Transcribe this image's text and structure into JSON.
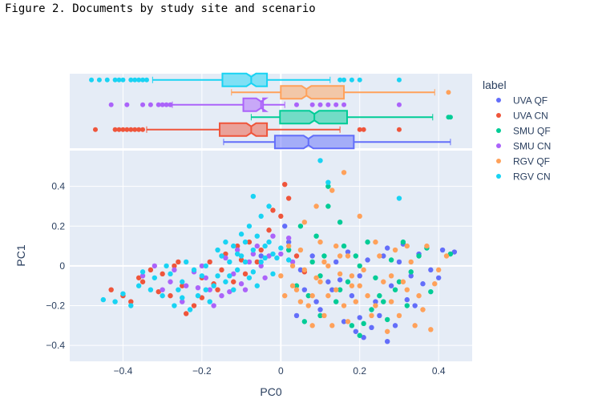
{
  "figure_title": "Figure 2. Documents by study site and scenario",
  "chart_data": {
    "type": "scatter",
    "xlabel": "PC0",
    "ylabel": "PC1",
    "xlim": [
      -0.535,
      0.485
    ],
    "ylim": [
      -0.48,
      0.58
    ],
    "xticks": [
      -0.4,
      -0.2,
      0,
      0.2,
      0.4
    ],
    "xtick_labels": [
      "−0.4",
      "−0.2",
      "0",
      "0.2",
      "0.4"
    ],
    "yticks": [
      -0.4,
      -0.2,
      0,
      0.2,
      0.4
    ],
    "ytick_labels": [
      "−0.4",
      "−0.2",
      "0",
      "0.2",
      "0.4"
    ],
    "grid": true,
    "legend_title": "label",
    "legend_position": "right",
    "series": [
      {
        "name": "UVA QF",
        "color": "#636efa",
        "box": {
          "lower_fence": -0.145,
          "q1": -0.015,
          "median": 0.07,
          "q3": 0.185,
          "upper_fence": 0.43,
          "outliers": []
        },
        "points": [
          [
            0.05,
            -0.02
          ],
          [
            0.12,
            -0.08
          ],
          [
            0.18,
            -0.15
          ],
          [
            0.22,
            0.03
          ],
          [
            0.28,
            -0.1
          ],
          [
            0.33,
            -0.05
          ],
          [
            0.35,
            0.06
          ],
          [
            0.41,
            0.08
          ],
          [
            0.25,
            -0.25
          ],
          [
            0.19,
            -0.33
          ],
          [
            0.27,
            -0.38
          ],
          [
            0.06,
            -0.12
          ],
          [
            0.14,
            0.02
          ],
          [
            0.3,
            0.02
          ],
          [
            0.38,
            -0.02
          ],
          [
            0.1,
            -0.22
          ],
          [
            0.2,
            -0.05
          ],
          [
            0.24,
            -0.18
          ],
          [
            0.16,
            -0.28
          ],
          [
            0.08,
            0.05
          ],
          [
            -0.05,
            0.05
          ],
          [
            0.02,
            0.12
          ],
          [
            0.34,
            -0.2
          ],
          [
            0.29,
            -0.3
          ],
          [
            0.44,
            0.07
          ],
          [
            0.21,
            -0.36
          ],
          [
            0.13,
            -0.12
          ],
          [
            0.31,
            0.11
          ],
          [
            0.36,
            -0.09
          ],
          [
            0.26,
            0.05
          ],
          [
            0.09,
            -0.18
          ],
          [
            0.17,
            0.07
          ],
          [
            0.04,
            -0.25
          ],
          [
            0.23,
            -0.31
          ],
          [
            0.4,
            -0.06
          ],
          [
            0.01,
            0.2
          ],
          [
            0.15,
            -0.07
          ],
          [
            0.32,
            -0.17
          ],
          [
            0.27,
            0.09
          ],
          [
            0.2,
            -0.26
          ]
        ]
      },
      {
        "name": "UVA CN",
        "color": "#ef553b",
        "box": {
          "lower_fence": -0.34,
          "q1": -0.155,
          "median": -0.075,
          "q3": -0.035,
          "upper_fence": 0.15,
          "outliers": [
            -0.47,
            -0.42,
            -0.41,
            -0.4,
            -0.39,
            -0.38,
            -0.37,
            -0.36,
            -0.35,
            0.2,
            0.21,
            0.3
          ]
        },
        "points": [
          [
            -0.43,
            -0.12
          ],
          [
            -0.35,
            -0.08
          ],
          [
            -0.3,
            -0.04
          ],
          [
            -0.25,
            -0.1
          ],
          [
            -0.2,
            -0.06
          ],
          [
            -0.15,
            -0.02
          ],
          [
            -0.1,
            0.03
          ],
          [
            -0.05,
            0.08
          ],
          [
            -0.38,
            -0.18
          ],
          [
            -0.28,
            -0.15
          ],
          [
            -0.22,
            -0.2
          ],
          [
            -0.18,
            0.02
          ],
          [
            -0.12,
            -0.08
          ],
          [
            -0.08,
            0.12
          ],
          [
            -0.03,
            0.18
          ],
          [
            0.0,
            0.25
          ],
          [
            -0.33,
            -0.02
          ],
          [
            -0.27,
            0.0
          ],
          [
            -0.16,
            -0.12
          ],
          [
            -0.06,
            0.02
          ],
          [
            0.02,
            0.34
          ],
          [
            -0.02,
            0.28
          ],
          [
            -0.24,
            -0.24
          ],
          [
            -0.4,
            -0.15
          ],
          [
            -0.14,
            0.06
          ],
          [
            0.04,
            0.05
          ],
          [
            -0.09,
            -0.04
          ],
          [
            -0.2,
            -0.16
          ],
          [
            -0.31,
            -0.13
          ],
          [
            0.06,
            -0.03
          ],
          [
            -0.11,
            0.1
          ],
          [
            -0.36,
            -0.06
          ],
          [
            -0.26,
            0.02
          ],
          [
            -0.17,
            -0.09
          ],
          [
            0.01,
            0.41
          ]
        ]
      },
      {
        "name": "SMU QF",
        "color": "#00cc96",
        "box": {
          "lower_fence": -0.075,
          "q1": -0.002,
          "median": 0.085,
          "q3": 0.168,
          "upper_fence": 0.385,
          "outliers": [
            0.425,
            0.43
          ]
        },
        "points": [
          [
            0.04,
            -0.1
          ],
          [
            0.1,
            -0.05
          ],
          [
            0.15,
            -0.12
          ],
          [
            0.2,
            0.0
          ],
          [
            0.25,
            -0.15
          ],
          [
            0.3,
            -0.08
          ],
          [
            0.35,
            0.05
          ],
          [
            0.1,
            -0.25
          ],
          [
            0.18,
            -0.3
          ],
          [
            0.23,
            -0.22
          ],
          [
            0.08,
            0.02
          ],
          [
            0.05,
            0.2
          ],
          [
            0.12,
            0.3
          ],
          [
            0.16,
            0.1
          ],
          [
            0.22,
            0.12
          ],
          [
            0.28,
            0.03
          ],
          [
            0.32,
            -0.2
          ],
          [
            0.38,
            -0.13
          ],
          [
            0.43,
            0.06
          ],
          [
            0.14,
            -0.18
          ],
          [
            0.06,
            -0.28
          ],
          [
            0.27,
            -0.27
          ],
          [
            0.2,
            -0.35
          ],
          [
            0.02,
            0.08
          ],
          [
            0.09,
            0.15
          ],
          [
            0.31,
            0.12
          ],
          [
            0.24,
            -0.06
          ],
          [
            0.17,
            -0.08
          ],
          [
            0.12,
            0.4
          ],
          [
            0.19,
            0.05
          ],
          [
            0.26,
            -0.18
          ],
          [
            0.33,
            -0.03
          ],
          [
            0.07,
            -0.15
          ],
          [
            0.15,
            0.22
          ],
          [
            0.29,
            -0.12
          ],
          [
            0.37,
            0.09
          ],
          [
            0.21,
            -0.29
          ],
          [
            0.11,
            0.05
          ]
        ]
      },
      {
        "name": "SMU CN",
        "color": "#ab63fa",
        "box": {
          "lower_fence": -0.275,
          "q1": -0.095,
          "median": -0.05,
          "q3": -0.045,
          "upper_fence": 0.01,
          "outliers": [
            -0.43,
            -0.39,
            -0.35,
            -0.33,
            -0.31,
            -0.3,
            -0.29,
            -0.28,
            0.04,
            0.08,
            0.1,
            0.12,
            0.14,
            0.16,
            0.3
          ]
        },
        "points": [
          [
            -0.35,
            -0.05
          ],
          [
            -0.28,
            -0.08
          ],
          [
            -0.22,
            -0.03
          ],
          [
            -0.18,
            -0.12
          ],
          [
            -0.12,
            -0.04
          ],
          [
            -0.08,
            0.02
          ],
          [
            -0.03,
            0.05
          ],
          [
            -0.25,
            -0.18
          ],
          [
            -0.15,
            -0.15
          ],
          [
            -0.1,
            -0.09
          ],
          [
            -0.06,
            0.1
          ],
          [
            -0.02,
            0.15
          ],
          [
            -0.3,
            -0.12
          ],
          [
            -0.2,
            0.0
          ],
          [
            -0.14,
            0.04
          ],
          [
            -0.04,
            -0.06
          ],
          [
            -0.32,
            0.0
          ],
          [
            -0.24,
            -0.1
          ],
          [
            -0.17,
            -0.2
          ],
          [
            -0.09,
            -0.12
          ],
          [
            0.0,
            0.06
          ],
          [
            0.03,
            0.02
          ],
          [
            -0.27,
            -0.02
          ],
          [
            -0.11,
            0.08
          ],
          [
            -0.19,
            -0.06
          ],
          [
            -0.05,
            0.0
          ],
          [
            -0.13,
            -0.13
          ],
          [
            -0.07,
            0.06
          ],
          [
            0.02,
            0.14
          ],
          [
            -0.21,
            -0.11
          ]
        ]
      },
      {
        "name": "RGV QF",
        "color": "#ffa15a",
        "box": {
          "lower_fence": -0.125,
          "q1": 0.0,
          "median": 0.065,
          "q3": 0.16,
          "upper_fence": 0.39,
          "outliers": [
            0.425
          ]
        },
        "points": [
          [
            0.0,
            -0.05
          ],
          [
            0.03,
            -0.1
          ],
          [
            0.06,
            -0.02
          ],
          [
            0.08,
            -0.15
          ],
          [
            0.1,
            -0.08
          ],
          [
            0.12,
            0.0
          ],
          [
            0.14,
            -0.12
          ],
          [
            0.16,
            -0.2
          ],
          [
            0.18,
            -0.05
          ],
          [
            0.2,
            -0.1
          ],
          [
            0.22,
            -0.15
          ],
          [
            0.24,
            -0.2
          ],
          [
            0.26,
            -0.08
          ],
          [
            0.28,
            -0.18
          ],
          [
            0.3,
            -0.25
          ],
          [
            0.32,
            -0.12
          ],
          [
            0.34,
            -0.3
          ],
          [
            0.36,
            -0.22
          ],
          [
            0.38,
            -0.32
          ],
          [
            0.05,
            0.08
          ],
          [
            0.1,
            0.12
          ],
          [
            0.15,
            0.05
          ],
          [
            0.02,
            0.1
          ],
          [
            0.07,
            -0.2
          ],
          [
            0.11,
            -0.25
          ],
          [
            0.13,
            -0.3
          ],
          [
            0.17,
            -0.28
          ],
          [
            0.21,
            -0.02
          ],
          [
            0.25,
            0.05
          ],
          [
            0.29,
            0.08
          ],
          [
            0.33,
            0.02
          ],
          [
            0.37,
            0.1
          ],
          [
            0.4,
            -0.02
          ],
          [
            0.42,
            0.05
          ],
          [
            0.04,
            -0.12
          ],
          [
            0.09,
            -0.06
          ],
          [
            0.19,
            -0.18
          ],
          [
            0.23,
            -0.25
          ],
          [
            0.06,
            0.22
          ],
          [
            0.09,
            0.3
          ],
          [
            0.13,
            0.38
          ],
          [
            0.16,
            0.47
          ],
          [
            0.2,
            0.25
          ],
          [
            0.17,
            0.05
          ],
          [
            0.12,
            -0.15
          ],
          [
            0.08,
            -0.3
          ],
          [
            0.27,
            -0.33
          ],
          [
            0.31,
            -0.08
          ],
          [
            0.35,
            -0.15
          ],
          [
            0.39,
            -0.09
          ],
          [
            0.01,
            -0.15
          ],
          [
            0.03,
            0.0
          ],
          [
            0.14,
            0.1
          ],
          [
            0.18,
            -0.1
          ],
          [
            0.24,
            0.12
          ],
          [
            0.28,
            -0.05
          ],
          [
            0.32,
            0.1
          ],
          [
            0.05,
            -0.18
          ],
          [
            0.11,
            0.02
          ],
          [
            0.15,
            -0.04
          ]
        ]
      },
      {
        "name": "RGV CN",
        "color": "#19d3f3",
        "box": {
          "lower_fence": -0.325,
          "q1": -0.148,
          "median": -0.075,
          "q3": -0.035,
          "upper_fence": 0.125,
          "outliers": [
            -0.48,
            -0.46,
            -0.44,
            -0.42,
            -0.41,
            -0.4,
            -0.38,
            -0.37,
            -0.36,
            -0.35,
            -0.34,
            0.15,
            0.16,
            0.18,
            0.2,
            0.3
          ]
        },
        "points": [
          [
            -0.45,
            -0.17
          ],
          [
            -0.4,
            -0.14
          ],
          [
            -0.36,
            -0.1
          ],
          [
            -0.32,
            -0.06
          ],
          [
            -0.28,
            -0.04
          ],
          [
            -0.25,
            -0.08
          ],
          [
            -0.22,
            -0.02
          ],
          [
            -0.19,
            0.0
          ],
          [
            -0.16,
            -0.05
          ],
          [
            -0.13,
            0.02
          ],
          [
            -0.1,
            0.05
          ],
          [
            -0.07,
            0.08
          ],
          [
            -0.04,
            0.1
          ],
          [
            -0.01,
            0.04
          ],
          [
            -0.3,
            -0.15
          ],
          [
            -0.26,
            -0.12
          ],
          [
            -0.21,
            -0.15
          ],
          [
            -0.17,
            -0.1
          ],
          [
            -0.14,
            -0.08
          ],
          [
            -0.11,
            -0.02
          ],
          [
            -0.08,
            -0.06
          ],
          [
            -0.05,
            0.02
          ],
          [
            -0.02,
            0.06
          ],
          [
            -0.35,
            -0.03
          ],
          [
            -0.29,
            0.0
          ],
          [
            -0.24,
            0.02
          ],
          [
            -0.2,
            -0.05
          ],
          [
            -0.15,
            0.05
          ],
          [
            -0.12,
            0.1
          ],
          [
            -0.09,
            0.12
          ],
          [
            -0.06,
            0.15
          ],
          [
            -0.03,
            0.12
          ],
          [
            0.0,
            0.09
          ],
          [
            0.02,
            0.03
          ],
          [
            -0.18,
            -0.18
          ],
          [
            -0.23,
            -0.22
          ],
          [
            -0.27,
            -0.2
          ],
          [
            -0.12,
            -0.12
          ],
          [
            -0.06,
            -0.1
          ],
          [
            -0.02,
            -0.04
          ],
          [
            -0.08,
            0.2
          ],
          [
            -0.05,
            0.25
          ],
          [
            -0.03,
            0.3
          ],
          [
            0.1,
            0.53
          ],
          [
            0.12,
            0.42
          ],
          [
            0.3,
            0.34
          ],
          [
            -0.07,
            0.35
          ],
          [
            -0.1,
            0.16
          ],
          [
            -0.14,
            0.12
          ],
          [
            -0.33,
            -0.12
          ],
          [
            -0.38,
            -0.2
          ],
          [
            -0.42,
            -0.18
          ],
          [
            -0.16,
            0.08
          ],
          [
            -0.04,
            0.04
          ],
          [
            -0.11,
            0.06
          ],
          [
            -0.07,
            -0.03
          ],
          [
            -0.13,
            -0.05
          ],
          [
            -0.09,
            0.02
          ],
          [
            -0.19,
            -0.12
          ],
          [
            -0.25,
            -0.16
          ]
        ]
      }
    ]
  }
}
